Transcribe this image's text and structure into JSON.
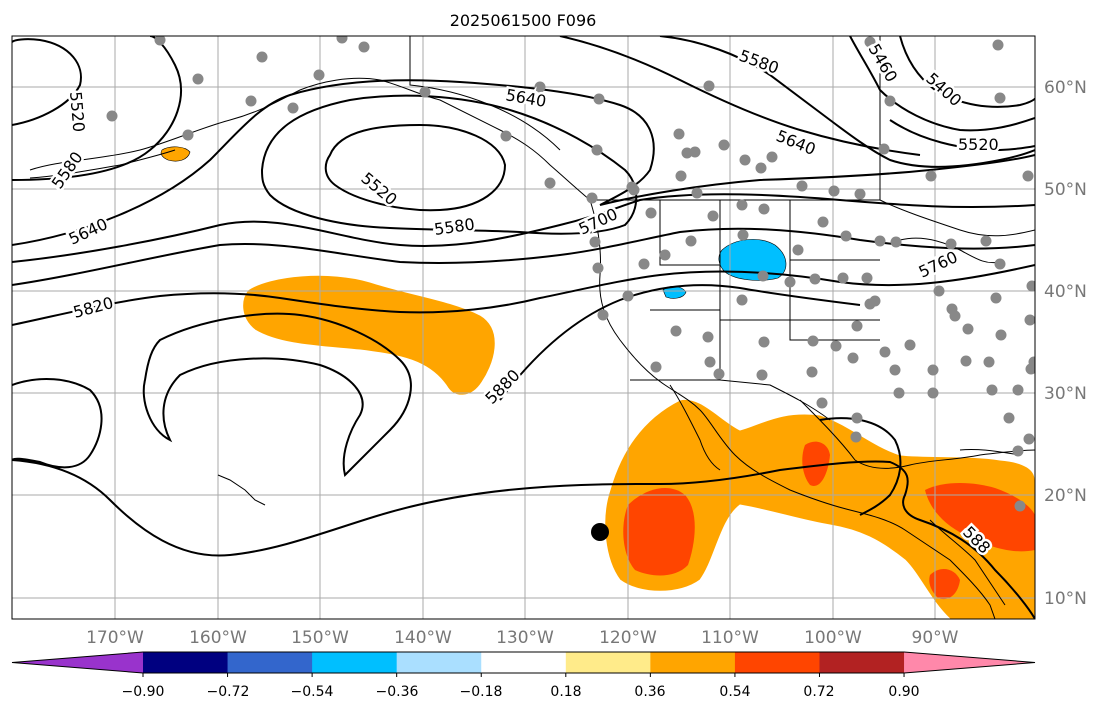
{
  "title": "2025061500 F096",
  "lon_labels": [
    "170°W",
    "160°W",
    "150°W",
    "140°W",
    "130°W",
    "120°W",
    "110°W",
    "100°W",
    "90°W"
  ],
  "lat_labels": [
    "60°N",
    "50°N",
    "40°N",
    "30°N",
    "20°N",
    "10°N"
  ],
  "contour_labels": [
    "5520",
    "5580",
    "5640",
    "5520",
    "5580",
    "5640",
    "5820",
    "5880",
    "5580",
    "5640",
    "5700",
    "5760",
    "5460",
    "5400",
    "5520",
    "588"
  ],
  "colorbar": {
    "tick_labels": [
      "−0.90",
      "−0.72",
      "−0.54",
      "−0.36",
      "−0.18",
      "0.18",
      "0.36",
      "0.54",
      "0.72",
      "0.90"
    ],
    "colors": [
      "#9933cc",
      "#000080",
      "#3366cc",
      "#00bfff",
      "#aadfff",
      "#ffffff",
      "#ffeb8a",
      "#ffa500",
      "#ff4500",
      "#b22222",
      "#ff88aa"
    ]
  },
  "fill_colors": {
    "orange": "#ffa500",
    "red_orange": "#ff4500",
    "cyan": "#00bfff",
    "light_blue": "#aadfff"
  }
}
